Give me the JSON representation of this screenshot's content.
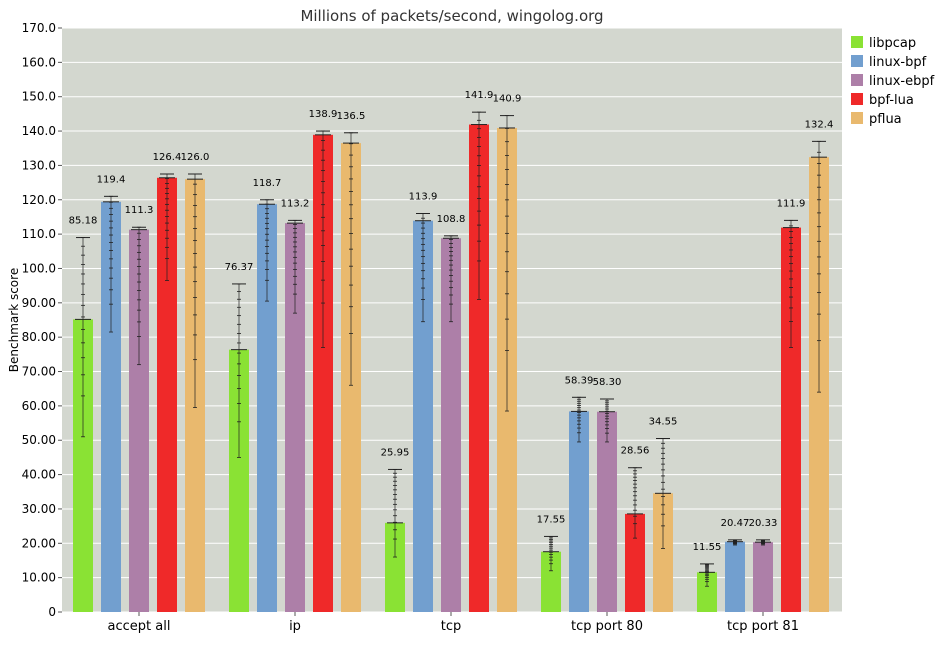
{
  "chart_data": {
    "type": "bar",
    "title": "Millions of packets/second, wingolog.org",
    "ylabel": "Benchmark score",
    "xlabel": "",
    "ylim": [
      0,
      170
    ],
    "yticks": [
      "0",
      "10.00",
      "20.00",
      "30.00",
      "40.00",
      "50.00",
      "60.00",
      "70.00",
      "80.00",
      "90.00",
      "100.0",
      "110.0",
      "120.0",
      "130.0",
      "140.0",
      "150.0",
      "160.0",
      "170.0"
    ],
    "grid": true,
    "legend_position": "right",
    "categories": [
      "accept all",
      "ip",
      "tcp",
      "tcp port 80",
      "tcp port 81"
    ],
    "series": [
      {
        "name": "libpcap",
        "color": "#8ae234",
        "values": [
          85.18,
          76.37,
          25.95,
          17.55,
          11.55
        ],
        "labels": [
          "85.18",
          "76.37",
          "25.95",
          "17.55",
          "11.55"
        ],
        "ranges": [
          [
            51,
            109
          ],
          [
            45,
            95.5
          ],
          [
            16,
            41.5
          ],
          [
            12,
            22
          ],
          [
            7.5,
            14
          ]
        ]
      },
      {
        "name": "linux-bpf",
        "color": "#729fcf",
        "values": [
          119.4,
          118.7,
          113.9,
          58.39,
          20.47
        ],
        "labels": [
          "119.4",
          "118.7",
          "113.9",
          "58.39",
          "20.47"
        ],
        "ranges": [
          [
            81.5,
            121
          ],
          [
            90.5,
            120
          ],
          [
            84.5,
            116
          ],
          [
            49.5,
            62.5
          ],
          [
            19.5,
            21
          ]
        ]
      },
      {
        "name": "linux-ebpf",
        "color": "#ad7fa8",
        "values": [
          111.3,
          113.2,
          108.8,
          58.3,
          20.33
        ],
        "labels": [
          "111.3",
          "113.2",
          "108.8",
          "58.30",
          "20.33"
        ],
        "ranges": [
          [
            72,
            112
          ],
          [
            87,
            114
          ],
          [
            84.5,
            109.5
          ],
          [
            49.5,
            62
          ],
          [
            19.5,
            21
          ]
        ]
      },
      {
        "name": "bpf-lua",
        "color": "#ef2929",
        "values": [
          126.4,
          138.9,
          141.9,
          28.56,
          111.9
        ],
        "labels": [
          "126.4",
          "138.9",
          "141.9",
          "28.56",
          "111.9"
        ],
        "ranges": [
          [
            96.5,
            127.5
          ],
          [
            77,
            140
          ],
          [
            91,
            145.5
          ],
          [
            21.5,
            42
          ],
          [
            77,
            114
          ]
        ]
      },
      {
        "name": "pflua",
        "color": "#e9b96e",
        "values": [
          126.0,
          136.5,
          140.9,
          34.55,
          132.4
        ],
        "labels": [
          "126.0",
          "136.5",
          "140.9",
          "34.55",
          "132.4"
        ],
        "ranges": [
          [
            59.5,
            127.5
          ],
          [
            66,
            139.5
          ],
          [
            58.5,
            144.5
          ],
          [
            18.5,
            50.5
          ],
          [
            64,
            137
          ]
        ]
      }
    ]
  }
}
